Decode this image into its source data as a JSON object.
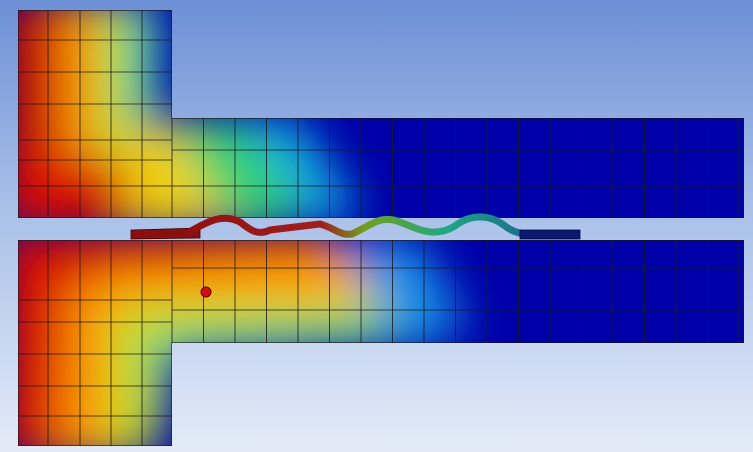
{
  "viewport": {
    "view": "fea-contour-result",
    "background": {
      "top": "#6d8fd6",
      "mid": "#a8bfe8",
      "bottom": "#e3ebf7"
    }
  },
  "contour": {
    "colormap": [
      "#c40000",
      "#ff3b00",
      "#ffa600",
      "#e8e000",
      "#9fe030",
      "#30d070",
      "#10c0c8",
      "#1070e8",
      "#0a2ad0",
      "#0000a8"
    ],
    "mesh_line_color": "#1a1a1a"
  },
  "parts": [
    {
      "id": "upper-block",
      "shape": "T-shape",
      "contour": "hot-left-to-cold-right"
    },
    {
      "id": "lower-block",
      "shape": "T-shape",
      "contour": "hot-left-to-cold-right"
    },
    {
      "id": "corrugated-strip",
      "shape": "wavy-sheet",
      "contour": "red-to-blue"
    }
  ],
  "probe": {
    "icon": "probe-marker-icon",
    "color": "#d01010"
  }
}
